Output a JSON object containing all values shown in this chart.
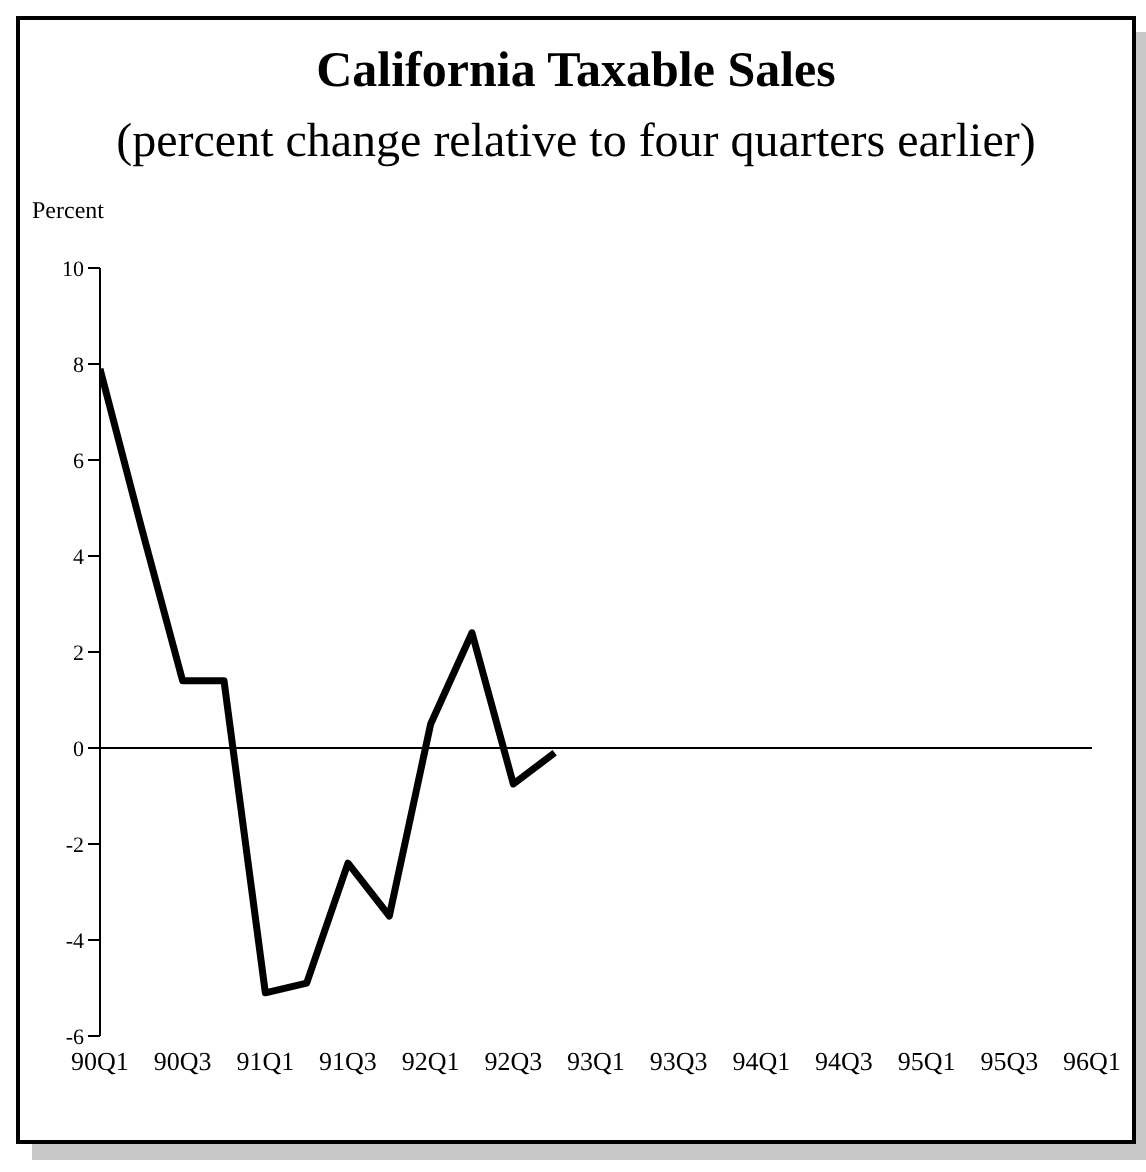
{
  "chart_data": {
    "type": "line",
    "title": "California Taxable Sales",
    "subtitle": "(percent change relative to four quarters earlier)",
    "ylabel": "Percent",
    "categories": [
      "90Q1",
      null,
      "90Q3",
      null,
      "91Q1",
      null,
      "91Q3",
      null,
      "92Q1",
      null,
      "92Q3",
      null,
      "93Q1",
      null,
      "93Q3",
      null,
      "94Q1",
      null,
      "94Q3",
      null,
      "95Q1",
      null,
      "95Q3",
      null,
      "96Q1"
    ],
    "series": [
      {
        "color": "#000000",
        "values": [
          7.9,
          4.6,
          1.4,
          1.4,
          -5.1,
          -4.9,
          -2.4,
          -3.5,
          0.5,
          2.4,
          -0.75,
          -0.1,
          null,
          null,
          null,
          null,
          null,
          null,
          null,
          null,
          null,
          null,
          null,
          null,
          null
        ]
      }
    ],
    "ylim": [
      -6,
      10
    ],
    "yticks": [
      -6,
      -4,
      -2,
      0,
      2,
      4,
      6,
      8,
      10
    ],
    "ref_lines": [
      {
        "axis": "y",
        "value": 0
      }
    ],
    "grid": false,
    "legend": false,
    "marker": "none",
    "line_style": "solid"
  }
}
